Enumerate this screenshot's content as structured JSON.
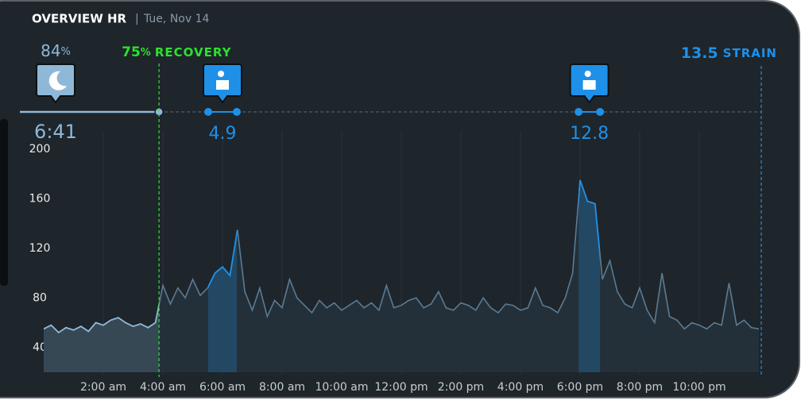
{
  "header": {
    "title": "OVERVIEW HR",
    "separator": "|",
    "date": "Tue, Nov 14"
  },
  "chart_data": {
    "type": "line",
    "x": [
      0,
      0.25,
      0.5,
      0.75,
      1,
      1.25,
      1.5,
      1.75,
      2,
      2.25,
      2.5,
      2.75,
      3,
      3.25,
      3.5,
      3.75,
      4,
      4.25,
      4.5,
      4.75,
      5,
      5.25,
      5.5,
      5.75,
      6,
      6.25,
      6.5,
      6.75,
      7,
      7.25,
      7.5,
      7.75,
      8,
      8.25,
      8.5,
      8.75,
      9,
      9.25,
      9.5,
      9.75,
      10,
      10.25,
      10.5,
      10.75,
      11,
      11.25,
      11.5,
      11.75,
      12,
      12.25,
      12.5,
      12.75,
      13,
      13.25,
      13.5,
      13.75,
      14,
      14.25,
      14.5,
      14.75,
      15,
      15.25,
      15.5,
      15.75,
      16,
      16.25,
      16.5,
      16.75,
      17,
      17.25,
      17.5,
      17.75,
      18,
      18.25,
      18.5,
      18.75,
      19,
      19.25,
      19.5,
      19.75,
      20,
      20.25,
      20.5,
      20.75,
      21,
      21.25,
      21.5,
      21.75,
      22,
      22.25,
      22.5,
      22.75,
      23,
      23.25,
      23.5,
      23.75,
      24
    ],
    "series": [
      {
        "name": "HR",
        "color": "#5b7b93",
        "values": [
          55,
          58,
          52,
          56,
          54,
          57,
          53,
          60,
          58,
          62,
          64,
          60,
          57,
          59,
          56,
          60,
          90,
          75,
          88,
          80,
          95,
          82,
          88,
          100,
          105,
          98,
          135,
          85,
          70,
          88,
          65,
          78,
          72,
          95,
          80,
          74,
          68,
          78,
          72,
          76,
          70,
          74,
          78,
          72,
          76,
          70,
          90,
          72,
          74,
          78,
          80,
          72,
          75,
          85,
          72,
          70,
          76,
          74,
          70,
          80,
          72,
          68,
          75,
          74,
          70,
          72,
          88,
          74,
          72,
          68,
          80,
          100,
          175,
          158,
          156,
          95,
          110,
          85,
          75,
          72,
          88,
          70,
          60,
          100,
          65,
          62,
          55,
          60,
          58,
          55,
          60,
          58,
          92,
          58,
          62,
          56,
          55
        ]
      }
    ],
    "xlim": [
      0,
      24.08
    ],
    "xticks": [
      {
        "value": 2,
        "label": "2:00 am"
      },
      {
        "value": 4,
        "label": "4:00 am"
      },
      {
        "value": 6,
        "label": "6:00 am"
      },
      {
        "value": 8,
        "label": "8:00 am"
      },
      {
        "value": 10,
        "label": "10:00 am"
      },
      {
        "value": 12,
        "label": "12:00 pm"
      },
      {
        "value": 14,
        "label": "2:00 pm"
      },
      {
        "value": 16,
        "label": "4:00 pm"
      },
      {
        "value": 18,
        "label": "6:00 pm"
      },
      {
        "value": 20,
        "label": "8:00 pm"
      },
      {
        "value": 22,
        "label": "10:00 pm"
      }
    ],
    "ylim": [
      20,
      200
    ],
    "yticks": [
      40,
      80,
      120,
      160,
      200
    ],
    "sleep": {
      "performance": 84,
      "unit": "%",
      "duration": "6:41",
      "start": 0,
      "end": 3.87,
      "color": "#8fb8d8"
    },
    "activities": [
      {
        "start": 5.52,
        "end": 6.48,
        "strain": 4.9
      },
      {
        "start": 17.95,
        "end": 18.67,
        "strain": 12.8
      }
    ],
    "activity_color": "#1e90e8",
    "recovery": {
      "value": 75,
      "unit": "%",
      "label": "RECOVERY",
      "x": 3.87,
      "color": "#2ee02e"
    },
    "strain": {
      "value": 13.5,
      "label": "STRAIN",
      "x": 24.08,
      "color": "#1e90e8"
    }
  }
}
